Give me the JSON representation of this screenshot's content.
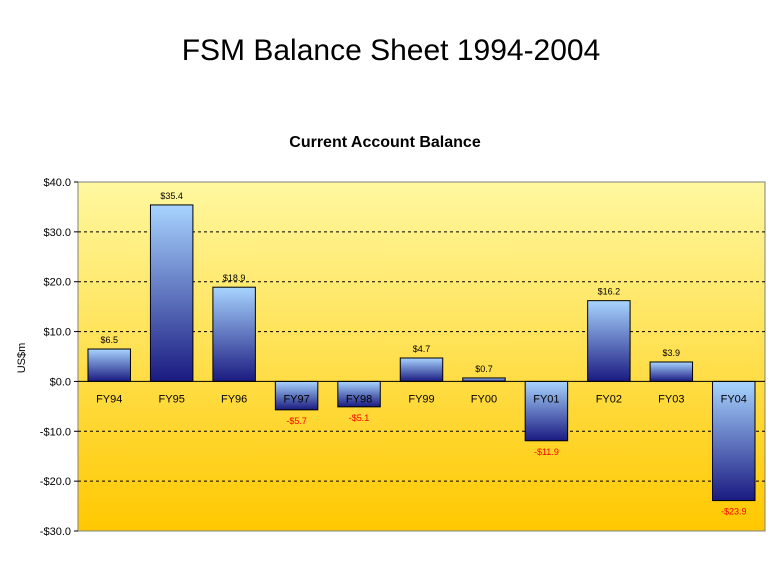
{
  "slide": {
    "title": "FSM Balance Sheet 1994-2004"
  },
  "chart_data": {
    "type": "bar",
    "title": "Current Account Balance",
    "xlabel": "",
    "ylabel": "US$m",
    "ylim": [
      -30,
      40
    ],
    "yticks": [
      40,
      30,
      20,
      10,
      0,
      -10,
      -20,
      -30
    ],
    "ytick_labels": [
      "$40.0",
      "$30.0",
      "$20.0",
      "$10.0",
      "$0.0",
      "-$10.0",
      "-$20.0",
      "-$30.0"
    ],
    "categories": [
      "FY94",
      "FY95",
      "FY96",
      "FY97",
      "FY98",
      "FY99",
      "FY00",
      "FY01",
      "FY02",
      "FY03",
      "FY04"
    ],
    "values": [
      6.5,
      35.4,
      18.9,
      -5.7,
      -5.1,
      4.7,
      0.7,
      -11.9,
      16.2,
      3.9,
      -23.9
    ],
    "data_labels": [
      "$6.5",
      "$35.4",
      "$18.9",
      "-$5.7",
      "-$5.1",
      "$4.7",
      "$0.7",
      "-$11.9",
      "$16.2",
      "$3.9",
      "-$23.9"
    ],
    "grid": true,
    "grid_style": "dashed",
    "legend": "none",
    "colors": {
      "bar_top": "#a8d4ff",
      "bar_bottom": "#1a1a80",
      "plot_bg_top": "#fff8a0",
      "plot_bg_bottom": "#ffc800",
      "positive_label": "#000000",
      "negative_label": "#ff0000"
    }
  }
}
